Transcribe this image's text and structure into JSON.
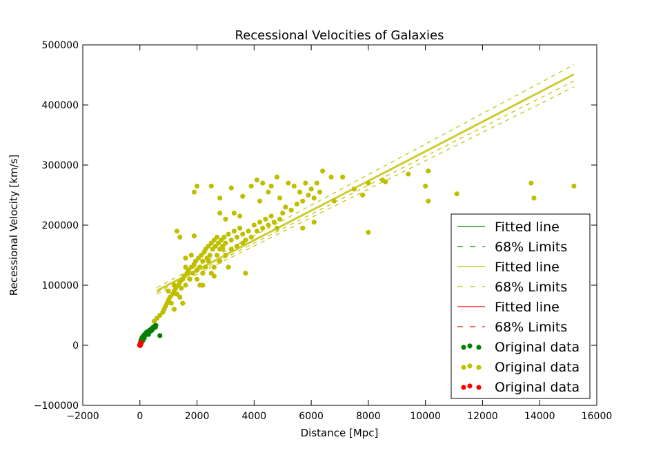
{
  "chart_data": {
    "type": "scatter",
    "title": "Recessional Velocities of Galaxies",
    "xlabel": "Distance [Mpc]",
    "ylabel": "Recessional Velocity [km/s]",
    "xlim": [
      -2000,
      16000
    ],
    "ylim": [
      -100000,
      500000
    ],
    "xticks": [
      -2000,
      0,
      2000,
      4000,
      6000,
      8000,
      10000,
      12000,
      14000,
      16000
    ],
    "yticks": [
      -100000,
      0,
      100000,
      200000,
      300000,
      400000,
      500000
    ],
    "xtick_labels": [
      "−2000",
      "0",
      "2000",
      "4000",
      "6000",
      "8000",
      "10000",
      "12000",
      "14000",
      "16000"
    ],
    "ytick_labels": [
      "−100000",
      "0",
      "100000",
      "200000",
      "300000",
      "400000",
      "500000"
    ],
    "grid": false,
    "legend_position": "lower-right",
    "legend": [
      {
        "label": "Fitted line",
        "color": "#008000",
        "style": "solid"
      },
      {
        "label": "68% Limits",
        "color": "#008000",
        "style": "dashed"
      },
      {
        "label": "Fitted line",
        "color": "#bfbf00",
        "style": "solid"
      },
      {
        "label": "68% Limits",
        "color": "#bfbf00",
        "style": "dashed"
      },
      {
        "label": "Fitted line",
        "color": "#ff0000",
        "style": "solid"
      },
      {
        "label": "68% Limits",
        "color": "#ff0000",
        "style": "dashed"
      },
      {
        "label": "Original data",
        "color": "#008000",
        "style": "points"
      },
      {
        "label": "Original data",
        "color": "#bfbf00",
        "style": "points"
      },
      {
        "label": "Original data",
        "color": "#ff0000",
        "style": "points"
      }
    ],
    "lines": [
      {
        "label": "Fitted line",
        "color": "#bfbf00",
        "style": "solid",
        "x": [
          600,
          15200
        ],
        "y": [
          90000,
          450000
        ]
      },
      {
        "label": "68% Limits",
        "color": "#bfbf00",
        "style": "dashed",
        "x": [
          600,
          15200
        ],
        "y": [
          96000,
          467000
        ]
      },
      {
        "label": "68% Limits",
        "color": "#bfbf00",
        "style": "dashed",
        "x": [
          600,
          15200
        ],
        "y": [
          85000,
          430000
        ]
      },
      {
        "label": "Fitted line",
        "color": "#bfbf00",
        "style": "solid",
        "x": [
          600,
          15200
        ],
        "y": [
          92000,
          452000
        ]
      },
      {
        "label": "68% Limits",
        "color": "#bfbf00",
        "style": "dashed",
        "x": [
          600,
          15200
        ],
        "y": [
          88000,
          440000
        ]
      }
    ],
    "series": [
      {
        "color": "#008000",
        "points": [
          [
            10,
            2000
          ],
          [
            20,
            4000
          ],
          [
            30,
            6000
          ],
          [
            40,
            8000
          ],
          [
            50,
            9000
          ],
          [
            60,
            11000
          ],
          [
            70,
            10000
          ],
          [
            80,
            13000
          ],
          [
            90,
            12000
          ],
          [
            100,
            14000
          ],
          [
            110,
            13000
          ],
          [
            120,
            15000
          ],
          [
            130,
            16000
          ],
          [
            150,
            17000
          ],
          [
            160,
            15000
          ],
          [
            180,
            18000
          ],
          [
            200,
            20000
          ],
          [
            220,
            21000
          ],
          [
            240,
            19000
          ],
          [
            260,
            22000
          ],
          [
            280,
            23000
          ],
          [
            300,
            21000
          ],
          [
            320,
            24000
          ],
          [
            340,
            25000
          ],
          [
            360,
            23000
          ],
          [
            380,
            26000
          ],
          [
            400,
            27000
          ],
          [
            420,
            25000
          ],
          [
            440,
            29000
          ],
          [
            460,
            28000
          ],
          [
            480,
            30000
          ],
          [
            500,
            31000
          ],
          [
            520,
            32000
          ],
          [
            540,
            30000
          ],
          [
            560,
            33000
          ],
          [
            300,
            18000
          ],
          [
            250,
            20000
          ],
          [
            150,
            12000
          ],
          [
            100,
            8000
          ],
          [
            60,
            5000
          ],
          [
            40,
            3000
          ],
          [
            700,
            16000
          ]
        ]
      },
      {
        "color": "#bfbf00",
        "points": [
          [
            500,
            40000
          ],
          [
            600,
            45000
          ],
          [
            700,
            50000
          ],
          [
            800,
            55000
          ],
          [
            850,
            60000
          ],
          [
            900,
            65000
          ],
          [
            950,
            70000
          ],
          [
            1000,
            75000
          ],
          [
            1050,
            80000
          ],
          [
            1100,
            70000
          ],
          [
            1150,
            85000
          ],
          [
            1200,
            90000
          ],
          [
            1250,
            95000
          ],
          [
            1300,
            85000
          ],
          [
            1350,
            100000
          ],
          [
            1400,
            105000
          ],
          [
            1450,
            95000
          ],
          [
            1500,
            110000
          ],
          [
            1550,
            115000
          ],
          [
            1600,
            100000
          ],
          [
            1650,
            120000
          ],
          [
            1700,
            125000
          ],
          [
            1750,
            110000
          ],
          [
            1800,
            130000
          ],
          [
            1850,
            120000
          ],
          [
            1900,
            135000
          ],
          [
            1950,
            140000
          ],
          [
            2000,
            125000
          ],
          [
            2050,
            145000
          ],
          [
            2100,
            130000
          ],
          [
            2150,
            150000
          ],
          [
            2200,
            140000
          ],
          [
            2250,
            155000
          ],
          [
            2300,
            160000
          ],
          [
            2350,
            145000
          ],
          [
            2400,
            165000
          ],
          [
            2450,
            150000
          ],
          [
            2500,
            170000
          ],
          [
            2550,
            160000
          ],
          [
            2600,
            175000
          ],
          [
            2650,
            165000
          ],
          [
            2700,
            180000
          ],
          [
            2750,
            170000
          ],
          [
            2800,
            160000
          ],
          [
            2850,
            175000
          ],
          [
            2900,
            165000
          ],
          [
            2950,
            180000
          ],
          [
            3000,
            170000
          ],
          [
            3100,
            185000
          ],
          [
            3200,
            175000
          ],
          [
            3300,
            190000
          ],
          [
            3400,
            180000
          ],
          [
            3500,
            195000
          ],
          [
            3600,
            185000
          ],
          [
            3700,
            175000
          ],
          [
            3800,
            190000
          ],
          [
            3900,
            180000
          ],
          [
            4000,
            200000
          ],
          [
            4100,
            190000
          ],
          [
            4200,
            205000
          ],
          [
            4300,
            195000
          ],
          [
            4400,
            210000
          ],
          [
            4500,
            200000
          ],
          [
            4600,
            215000
          ],
          [
            4700,
            205000
          ],
          [
            4800,
            195000
          ],
          [
            4900,
            210000
          ],
          [
            5000,
            220000
          ],
          [
            5100,
            230000
          ],
          [
            5300,
            225000
          ],
          [
            5500,
            235000
          ],
          [
            5700,
            240000
          ],
          [
            5900,
            250000
          ],
          [
            6100,
            245000
          ],
          [
            6300,
            255000
          ],
          [
            1000,
            90000
          ],
          [
            1200,
            100000
          ],
          [
            1400,
            80000
          ],
          [
            1600,
            130000
          ],
          [
            1800,
            150000
          ],
          [
            2000,
            110000
          ],
          [
            2100,
            100000
          ],
          [
            2200,
            120000
          ],
          [
            2300,
            130000
          ],
          [
            2400,
            140000
          ],
          [
            2500,
            120000
          ],
          [
            2600,
            130000
          ],
          [
            2700,
            150000
          ],
          [
            2800,
            140000
          ],
          [
            2900,
            160000
          ],
          [
            3000,
            150000
          ],
          [
            3200,
            160000
          ],
          [
            3400,
            165000
          ],
          [
            3600,
            170000
          ],
          [
            2000,
            265000
          ],
          [
            1900,
            255000
          ],
          [
            2500,
            265000
          ],
          [
            3200,
            262000
          ],
          [
            3900,
            265000
          ],
          [
            4100,
            275000
          ],
          [
            4300,
            270000
          ],
          [
            4500,
            255000
          ],
          [
            4600,
            265000
          ],
          [
            4800,
            280000
          ],
          [
            5200,
            270000
          ],
          [
            5400,
            265000
          ],
          [
            5600,
            255000
          ],
          [
            5800,
            270000
          ],
          [
            6000,
            260000
          ],
          [
            6200,
            270000
          ],
          [
            6400,
            290000
          ],
          [
            6700,
            280000
          ],
          [
            7100,
            280000
          ],
          [
            7800,
            250000
          ],
          [
            8000,
            270000
          ],
          [
            8500,
            275000
          ],
          [
            9400,
            285000
          ],
          [
            10000,
            265000
          ],
          [
            10100,
            290000
          ],
          [
            10100,
            240000
          ],
          [
            11100,
            252000
          ],
          [
            13700,
            270000
          ],
          [
            13800,
            245000
          ],
          [
            15200,
            265000
          ],
          [
            8000,
            188000
          ],
          [
            1300,
            190000
          ],
          [
            1400,
            180000
          ],
          [
            1900,
            182000
          ],
          [
            1600,
            145000
          ],
          [
            2800,
            220000
          ],
          [
            3000,
            210000
          ],
          [
            3300,
            220000
          ],
          [
            3500,
            215000
          ],
          [
            3700,
            120000
          ],
          [
            3100,
            130000
          ],
          [
            2600,
            115000
          ],
          [
            2200,
            100000
          ],
          [
            1500,
            70000
          ],
          [
            1200,
            60000
          ],
          [
            2800,
            245000
          ],
          [
            3600,
            248000
          ],
          [
            4200,
            240000
          ],
          [
            4900,
            245000
          ],
          [
            5700,
            195000
          ],
          [
            6100,
            205000
          ],
          [
            6800,
            240000
          ],
          [
            7500,
            260000
          ],
          [
            8600,
            272000
          ]
        ]
      },
      {
        "color": "#ff0000",
        "points": [
          [
            0,
            0
          ],
          [
            5,
            500
          ],
          [
            10,
            1000
          ],
          [
            15,
            1500
          ],
          [
            20,
            2000
          ],
          [
            25,
            2500
          ],
          [
            30,
            3000
          ],
          [
            35,
            3500
          ],
          [
            40,
            4000
          ],
          [
            45,
            4500
          ],
          [
            5,
            2000
          ],
          [
            10,
            -500
          ],
          [
            15,
            500
          ],
          [
            20,
            3000
          ],
          [
            25,
            1000
          ],
          [
            30,
            1500
          ],
          [
            0,
            1000
          ],
          [
            -10,
            500
          ]
        ]
      }
    ]
  }
}
